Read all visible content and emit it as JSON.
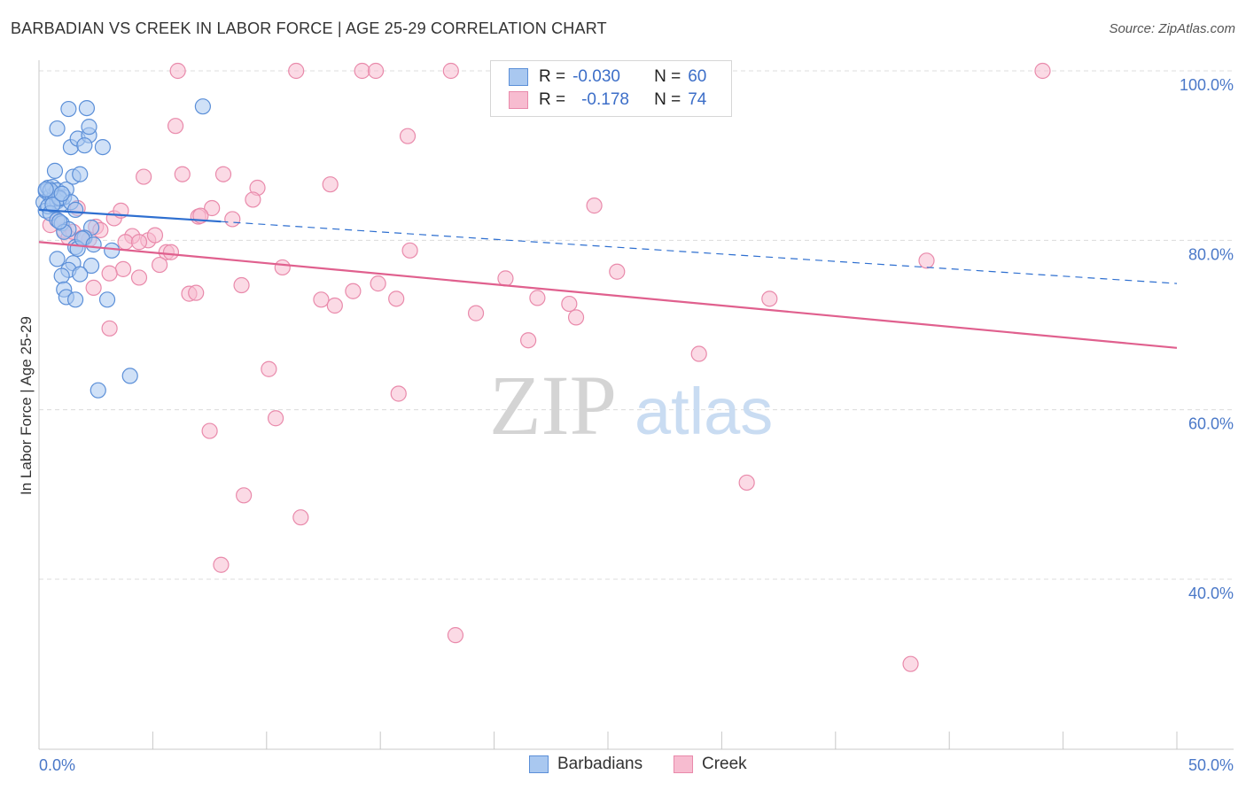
{
  "title": "BARBADIAN VS CREEK IN LABOR FORCE | AGE 25-29 CORRELATION CHART",
  "source": "Source: ZipAtlas.com",
  "legend_top": {
    "row1": {
      "r_label": "R =",
      "r_value": "-0.030",
      "n_label": "N =",
      "n_value": "60"
    },
    "row2": {
      "r_label": "R =",
      "r_value": "-0.178",
      "n_label": "N =",
      "n_value": "74"
    }
  },
  "colors": {
    "barbadian_fill": "#a9c8f0",
    "barbadian_stroke": "#5b8fd8",
    "barbadian_line": "#2e6fd0",
    "creek_fill": "#f7bcd0",
    "creek_stroke": "#e98aab",
    "creek_line": "#e0608e",
    "tick_color": "#4a78c8",
    "grid_color": "#dcdcdc"
  },
  "chart_data": {
    "type": "scatter",
    "title": "BARBADIAN VS CREEK IN LABOR FORCE | AGE 25-29 CORRELATION CHART",
    "xlabel": "",
    "ylabel": "In Labor Force | Age 25-29",
    "xlim": [
      0,
      50
    ],
    "ylim": [
      20,
      102
    ],
    "x_tick_labels": [
      "0.0%",
      "50.0%"
    ],
    "y_ticks": [
      40,
      60,
      80,
      100
    ],
    "y_tick_labels": [
      "40.0%",
      "60.0%",
      "80.0%",
      "100.0%"
    ],
    "legend": [
      "Barbadians",
      "Creek"
    ],
    "watermark": {
      "zip": "ZIP",
      "atlas": "atlas"
    },
    "series": [
      {
        "name": "Barbadians",
        "r": -0.03,
        "n": 60,
        "trend": {
          "x0": 0,
          "y0": 83.6,
          "x1": 50,
          "y1": 74.9,
          "solid_until": 8.0
        },
        "points": [
          [
            0.2,
            84.5
          ],
          [
            0.3,
            85.8
          ],
          [
            0.4,
            86.2
          ],
          [
            0.5,
            85.2
          ],
          [
            0.3,
            83.5
          ],
          [
            0.6,
            84.8
          ],
          [
            0.7,
            85.5
          ],
          [
            0.8,
            84.6
          ],
          [
            0.4,
            84.0
          ],
          [
            0.5,
            83.2
          ],
          [
            0.6,
            86.3
          ],
          [
            0.8,
            85.9
          ],
          [
            1.0,
            84.3
          ],
          [
            1.1,
            85.1
          ],
          [
            1.2,
            86.0
          ],
          [
            0.9,
            84.9
          ],
          [
            0.7,
            88.2
          ],
          [
            1.5,
            87.5
          ],
          [
            1.8,
            87.8
          ],
          [
            1.4,
            91.0
          ],
          [
            1.7,
            92.0
          ],
          [
            2.2,
            92.4
          ],
          [
            2.0,
            91.2
          ],
          [
            2.8,
            91.0
          ],
          [
            0.8,
            93.2
          ],
          [
            1.3,
            95.5
          ],
          [
            2.1,
            95.6
          ],
          [
            2.2,
            93.4
          ],
          [
            7.2,
            95.8
          ],
          [
            0.8,
            82.4
          ],
          [
            1.0,
            82.0
          ],
          [
            1.3,
            81.3
          ],
          [
            2.3,
            81.5
          ],
          [
            2.0,
            80.3
          ],
          [
            1.6,
            79.2
          ],
          [
            1.7,
            79.0
          ],
          [
            3.2,
            78.8
          ],
          [
            0.8,
            77.8
          ],
          [
            1.5,
            77.3
          ],
          [
            2.3,
            77.0
          ],
          [
            1.3,
            76.5
          ],
          [
            1.0,
            75.8
          ],
          [
            1.8,
            76.0
          ],
          [
            1.1,
            74.2
          ],
          [
            1.2,
            73.3
          ],
          [
            1.6,
            73.0
          ],
          [
            3.0,
            73.0
          ],
          [
            4.0,
            64.0
          ],
          [
            2.6,
            62.3
          ],
          [
            0.9,
            85.0
          ],
          [
            1.4,
            84.5
          ],
          [
            0.5,
            85.9
          ],
          [
            0.6,
            84.2
          ],
          [
            1.9,
            80.2
          ],
          [
            1.1,
            81.0
          ],
          [
            2.4,
            79.5
          ],
          [
            0.3,
            86.0
          ],
          [
            1.0,
            85.5
          ],
          [
            1.6,
            83.6
          ],
          [
            0.9,
            82.2
          ]
        ]
      },
      {
        "name": "Creek",
        "r": -0.178,
        "n": 74,
        "trend": {
          "x0": 0,
          "y0": 79.8,
          "x1": 50,
          "y1": 67.3
        },
        "points": [
          [
            6.1,
            100.0
          ],
          [
            11.3,
            100.0
          ],
          [
            14.2,
            100.0
          ],
          [
            14.8,
            100.0
          ],
          [
            18.1,
            100.0
          ],
          [
            44.1,
            100.0
          ],
          [
            6.0,
            93.5
          ],
          [
            16.2,
            92.3
          ],
          [
            4.6,
            87.5
          ],
          [
            6.3,
            87.8
          ],
          [
            8.1,
            87.8
          ],
          [
            12.8,
            86.6
          ],
          [
            9.6,
            86.2
          ],
          [
            9.4,
            84.8
          ],
          [
            7.6,
            83.8
          ],
          [
            7.0,
            82.8
          ],
          [
            7.1,
            82.9
          ],
          [
            8.5,
            82.5
          ],
          [
            3.3,
            82.6
          ],
          [
            24.4,
            84.1
          ],
          [
            1.7,
            83.8
          ],
          [
            2.5,
            81.6
          ],
          [
            1.1,
            81.2
          ],
          [
            4.1,
            80.5
          ],
          [
            2.2,
            80.1
          ],
          [
            3.8,
            79.8
          ],
          [
            4.8,
            80.0
          ],
          [
            1.3,
            80.3
          ],
          [
            5.6,
            78.6
          ],
          [
            5.8,
            78.6
          ],
          [
            16.3,
            78.8
          ],
          [
            5.3,
            77.1
          ],
          [
            10.7,
            76.8
          ],
          [
            3.7,
            76.6
          ],
          [
            3.1,
            76.1
          ],
          [
            4.4,
            75.6
          ],
          [
            20.5,
            75.5
          ],
          [
            25.4,
            76.3
          ],
          [
            39.0,
            77.6
          ],
          [
            8.9,
            74.7
          ],
          [
            14.9,
            74.9
          ],
          [
            13.8,
            74.0
          ],
          [
            6.6,
            73.7
          ],
          [
            6.9,
            73.8
          ],
          [
            12.4,
            73.0
          ],
          [
            15.7,
            73.1
          ],
          [
            21.9,
            73.2
          ],
          [
            23.3,
            72.5
          ],
          [
            32.1,
            73.1
          ],
          [
            13.0,
            72.3
          ],
          [
            19.2,
            71.4
          ],
          [
            23.6,
            70.9
          ],
          [
            3.1,
            69.6
          ],
          [
            21.5,
            68.2
          ],
          [
            29.0,
            66.6
          ],
          [
            10.1,
            64.8
          ],
          [
            15.8,
            61.9
          ],
          [
            10.4,
            59.0
          ],
          [
            7.5,
            57.5
          ],
          [
            31.1,
            51.4
          ],
          [
            9.0,
            49.9
          ],
          [
            11.5,
            47.3
          ],
          [
            8.0,
            41.7
          ],
          [
            18.3,
            33.4
          ],
          [
            38.3,
            30.0
          ],
          [
            2.4,
            74.4
          ],
          [
            1.5,
            81.0
          ],
          [
            5.1,
            80.6
          ],
          [
            4.4,
            79.8
          ],
          [
            0.5,
            81.8
          ],
          [
            1.9,
            80.3
          ],
          [
            3.6,
            83.5
          ],
          [
            0.8,
            82.4
          ],
          [
            2.7,
            81.2
          ]
        ]
      }
    ]
  }
}
